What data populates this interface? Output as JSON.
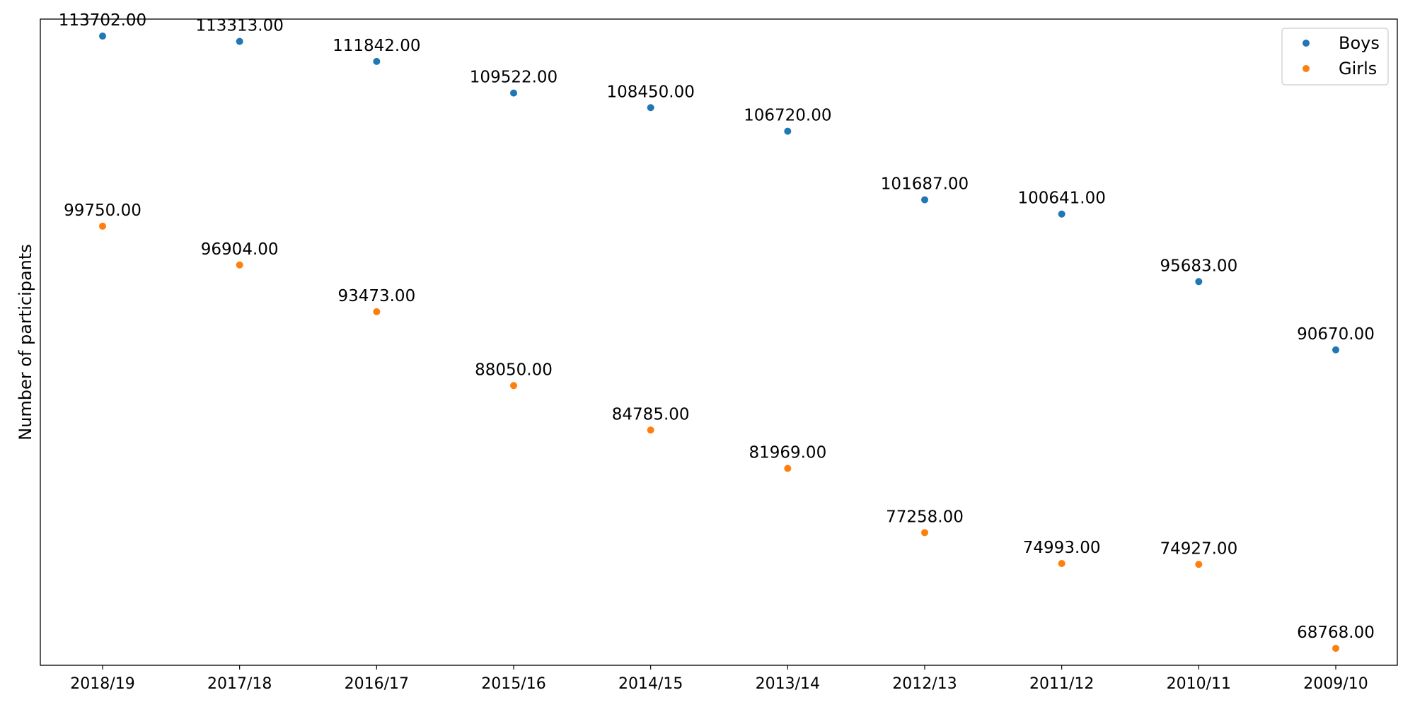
{
  "chart_data": {
    "type": "scatter",
    "title": "",
    "xlabel": "",
    "ylabel": "Number of participants",
    "categories": [
      "2018/19",
      "2017/18",
      "2016/17",
      "2015/16",
      "2014/15",
      "2013/14",
      "2012/13",
      "2011/12",
      "2010/11",
      "2009/10"
    ],
    "series": [
      {
        "name": "Boys",
        "color": "#1f77b4",
        "values": [
          113702,
          113313,
          111842,
          109522,
          108450,
          106720,
          101687,
          100641,
          95683,
          90670
        ],
        "labels": [
          "113702.00",
          "113313.00",
          "111842.00",
          "109522.00",
          "108450.00",
          "106720.00",
          "101687.00",
          "100641.00",
          "95683.00",
          "90670.00"
        ]
      },
      {
        "name": "Girls",
        "color": "#ff7f0e",
        "values": [
          99750,
          96904,
          93473,
          88050,
          84785,
          81969,
          77258,
          74993,
          74927,
          68768
        ],
        "labels": [
          "99750.00",
          "96904.00",
          "93473.00",
          "88050.00",
          "84785.00",
          "81969.00",
          "77258.00",
          "74993.00",
          "74927.00",
          "68768.00"
        ]
      }
    ],
    "ylim": [
      67520,
      114950
    ],
    "yticks_visible": false,
    "grid": false,
    "legend": {
      "position": "top-right",
      "entries": [
        "Boys",
        "Girls"
      ]
    }
  }
}
